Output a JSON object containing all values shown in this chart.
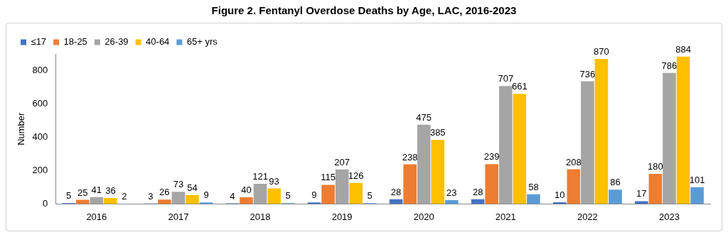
{
  "chart_data": {
    "type": "bar",
    "title": "Figure 2. Fentanyl Overdose Deaths by Age, LAC, 2016-2023",
    "ylabel": "Number",
    "categories": [
      "2016",
      "2017",
      "2018",
      "2019",
      "2020",
      "2021",
      "2022",
      "2023"
    ],
    "series": [
      {
        "name": "≤17",
        "color": "#4472c4",
        "values": [
          5,
          3,
          4,
          9,
          28,
          28,
          10,
          17
        ]
      },
      {
        "name": "18-25",
        "color": "#ed7d31",
        "values": [
          25,
          26,
          40,
          115,
          238,
          239,
          208,
          180
        ]
      },
      {
        "name": "26-39",
        "color": "#a5a5a5",
        "values": [
          41,
          73,
          121,
          207,
          475,
          707,
          736,
          786
        ]
      },
      {
        "name": "40-64",
        "color": "#ffc000",
        "values": [
          36,
          54,
          93,
          126,
          385,
          661,
          870,
          884
        ]
      },
      {
        "name": "65+ yrs",
        "color": "#5b9bd5",
        "values": [
          2,
          9,
          5,
          5,
          23,
          58,
          86,
          101
        ]
      }
    ],
    "ylim": [
      0,
      900
    ],
    "yticks": [
      0,
      200,
      400,
      600,
      800
    ],
    "grid": false,
    "legend": "top left",
    "data_labels": true
  }
}
